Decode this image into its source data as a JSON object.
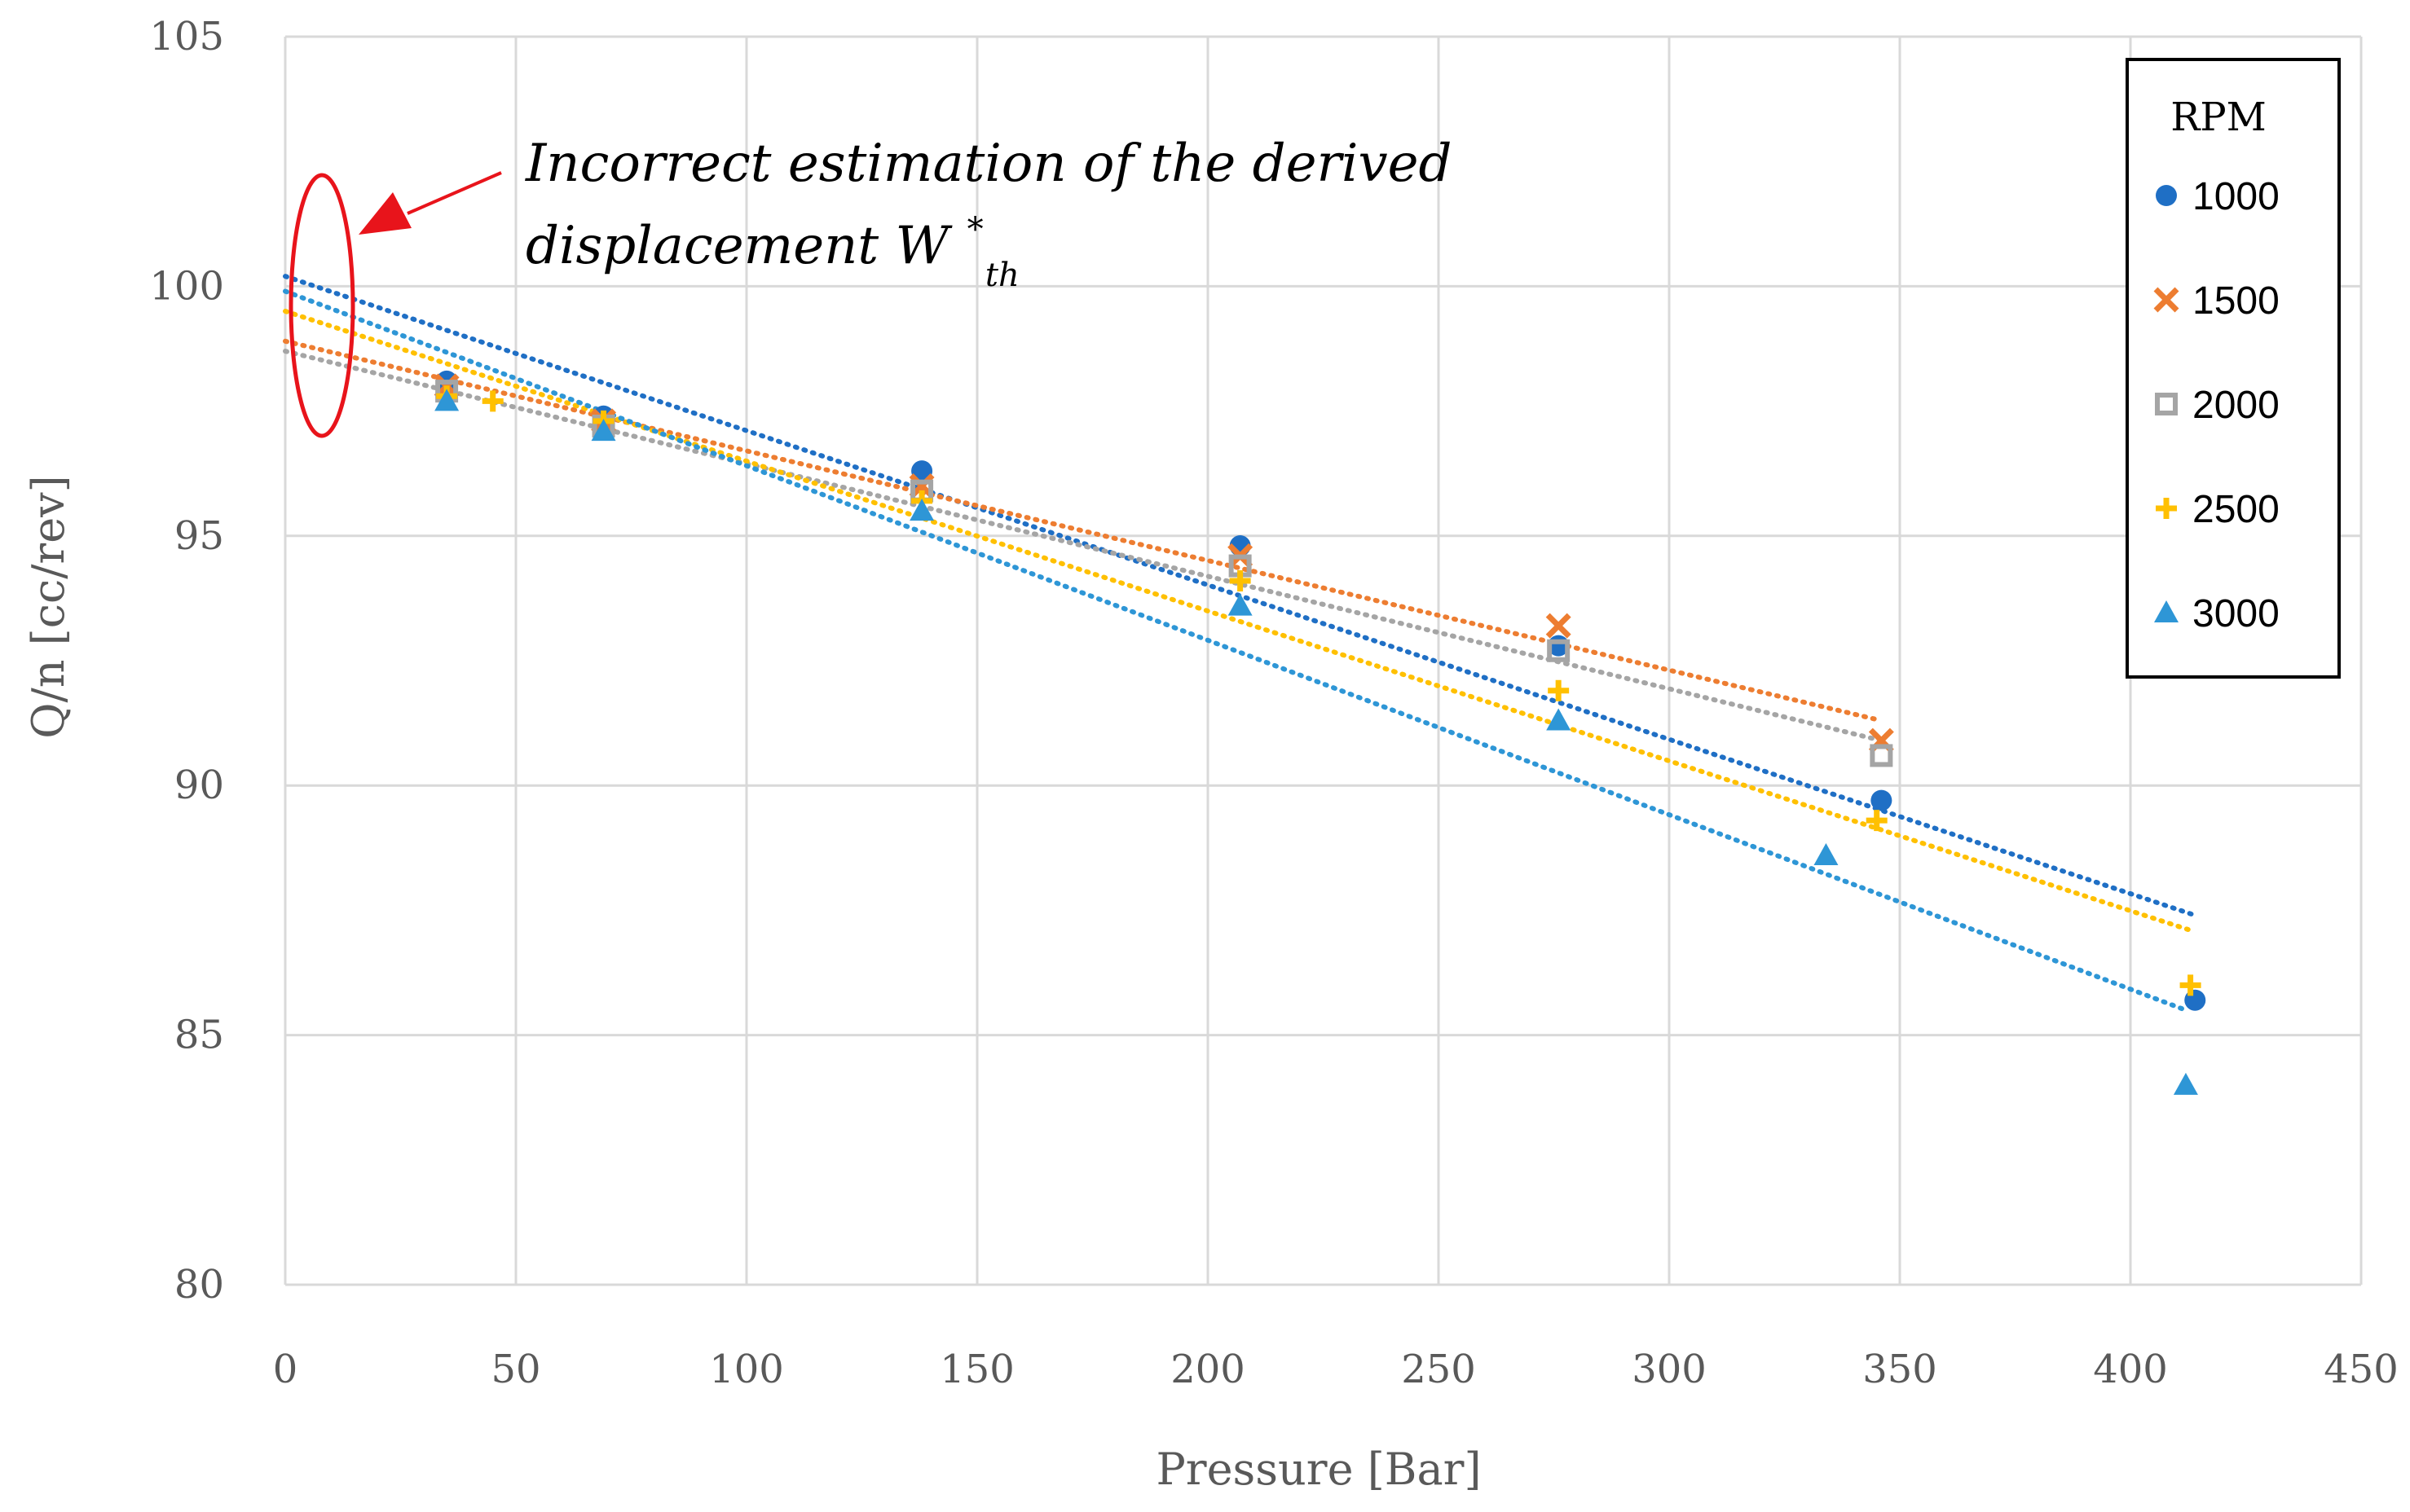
{
  "chart_data": {
    "type": "scatter",
    "title": "",
    "xlabel": "Pressure [Bar]",
    "ylabel": "Q/n [cc/rev]",
    "xlim": [
      0,
      450
    ],
    "ylim": [
      80,
      105
    ],
    "xticks": [
      0,
      50,
      100,
      150,
      200,
      250,
      300,
      350,
      400,
      450
    ],
    "yticks": [
      80,
      85,
      90,
      95,
      100,
      105
    ],
    "grid": true,
    "legend": {
      "title": "RPM",
      "placement": "top-right"
    },
    "series": [
      {
        "name": "1000",
        "marker": "circle",
        "color": "#1F6FC5",
        "x": [
          35,
          69,
          138,
          207,
          276,
          346,
          414
        ],
        "y": [
          98.1,
          97.4,
          96.3,
          94.8,
          92.8,
          89.7,
          85.7
        ],
        "trend": {
          "x0": 0,
          "y0": 100.2,
          "x1": 414,
          "y1": 87.4
        }
      },
      {
        "name": "1500",
        "marker": "x",
        "color": "#ED7D31",
        "x": [
          35,
          69,
          138,
          207,
          276,
          346
        ],
        "y": [
          98.0,
          97.3,
          96.0,
          94.6,
          93.2,
          90.9
        ],
        "trend": {
          "x0": 0,
          "y0": 98.9,
          "x1": 346,
          "y1": 91.3
        }
      },
      {
        "name": "2000",
        "marker": "square-open",
        "color": "#A5A5A5",
        "x": [
          35,
          69,
          138,
          207,
          276,
          346
        ],
        "y": [
          97.9,
          97.2,
          95.9,
          94.4,
          92.7,
          90.6
        ],
        "trend": {
          "x0": 0,
          "y0": 98.7,
          "x1": 346,
          "y1": 90.9
        }
      },
      {
        "name": "2500",
        "marker": "plus",
        "color": "#FFC000",
        "x": [
          35,
          45,
          69,
          138,
          207,
          276,
          345,
          413
        ],
        "y": [
          97.8,
          97.7,
          97.3,
          95.7,
          94.1,
          91.9,
          89.3,
          86.0
        ],
        "trend": {
          "x0": 0,
          "y0": 99.5,
          "x1": 413,
          "y1": 87.1
        }
      },
      {
        "name": "3000",
        "marker": "triangle",
        "color": "#2E96D6",
        "x": [
          35,
          69,
          138,
          207,
          276,
          334,
          412
        ],
        "y": [
          97.7,
          97.1,
          95.5,
          93.6,
          91.3,
          88.6,
          84.0
        ],
        "trend": {
          "x0": 0,
          "y0": 99.9,
          "x1": 412,
          "y1": 85.5
        }
      }
    ],
    "annotation": {
      "line1": "Incorrect estimation of the derived",
      "line2": "displacement  W",
      "sup": "*",
      "sub": "th"
    }
  }
}
